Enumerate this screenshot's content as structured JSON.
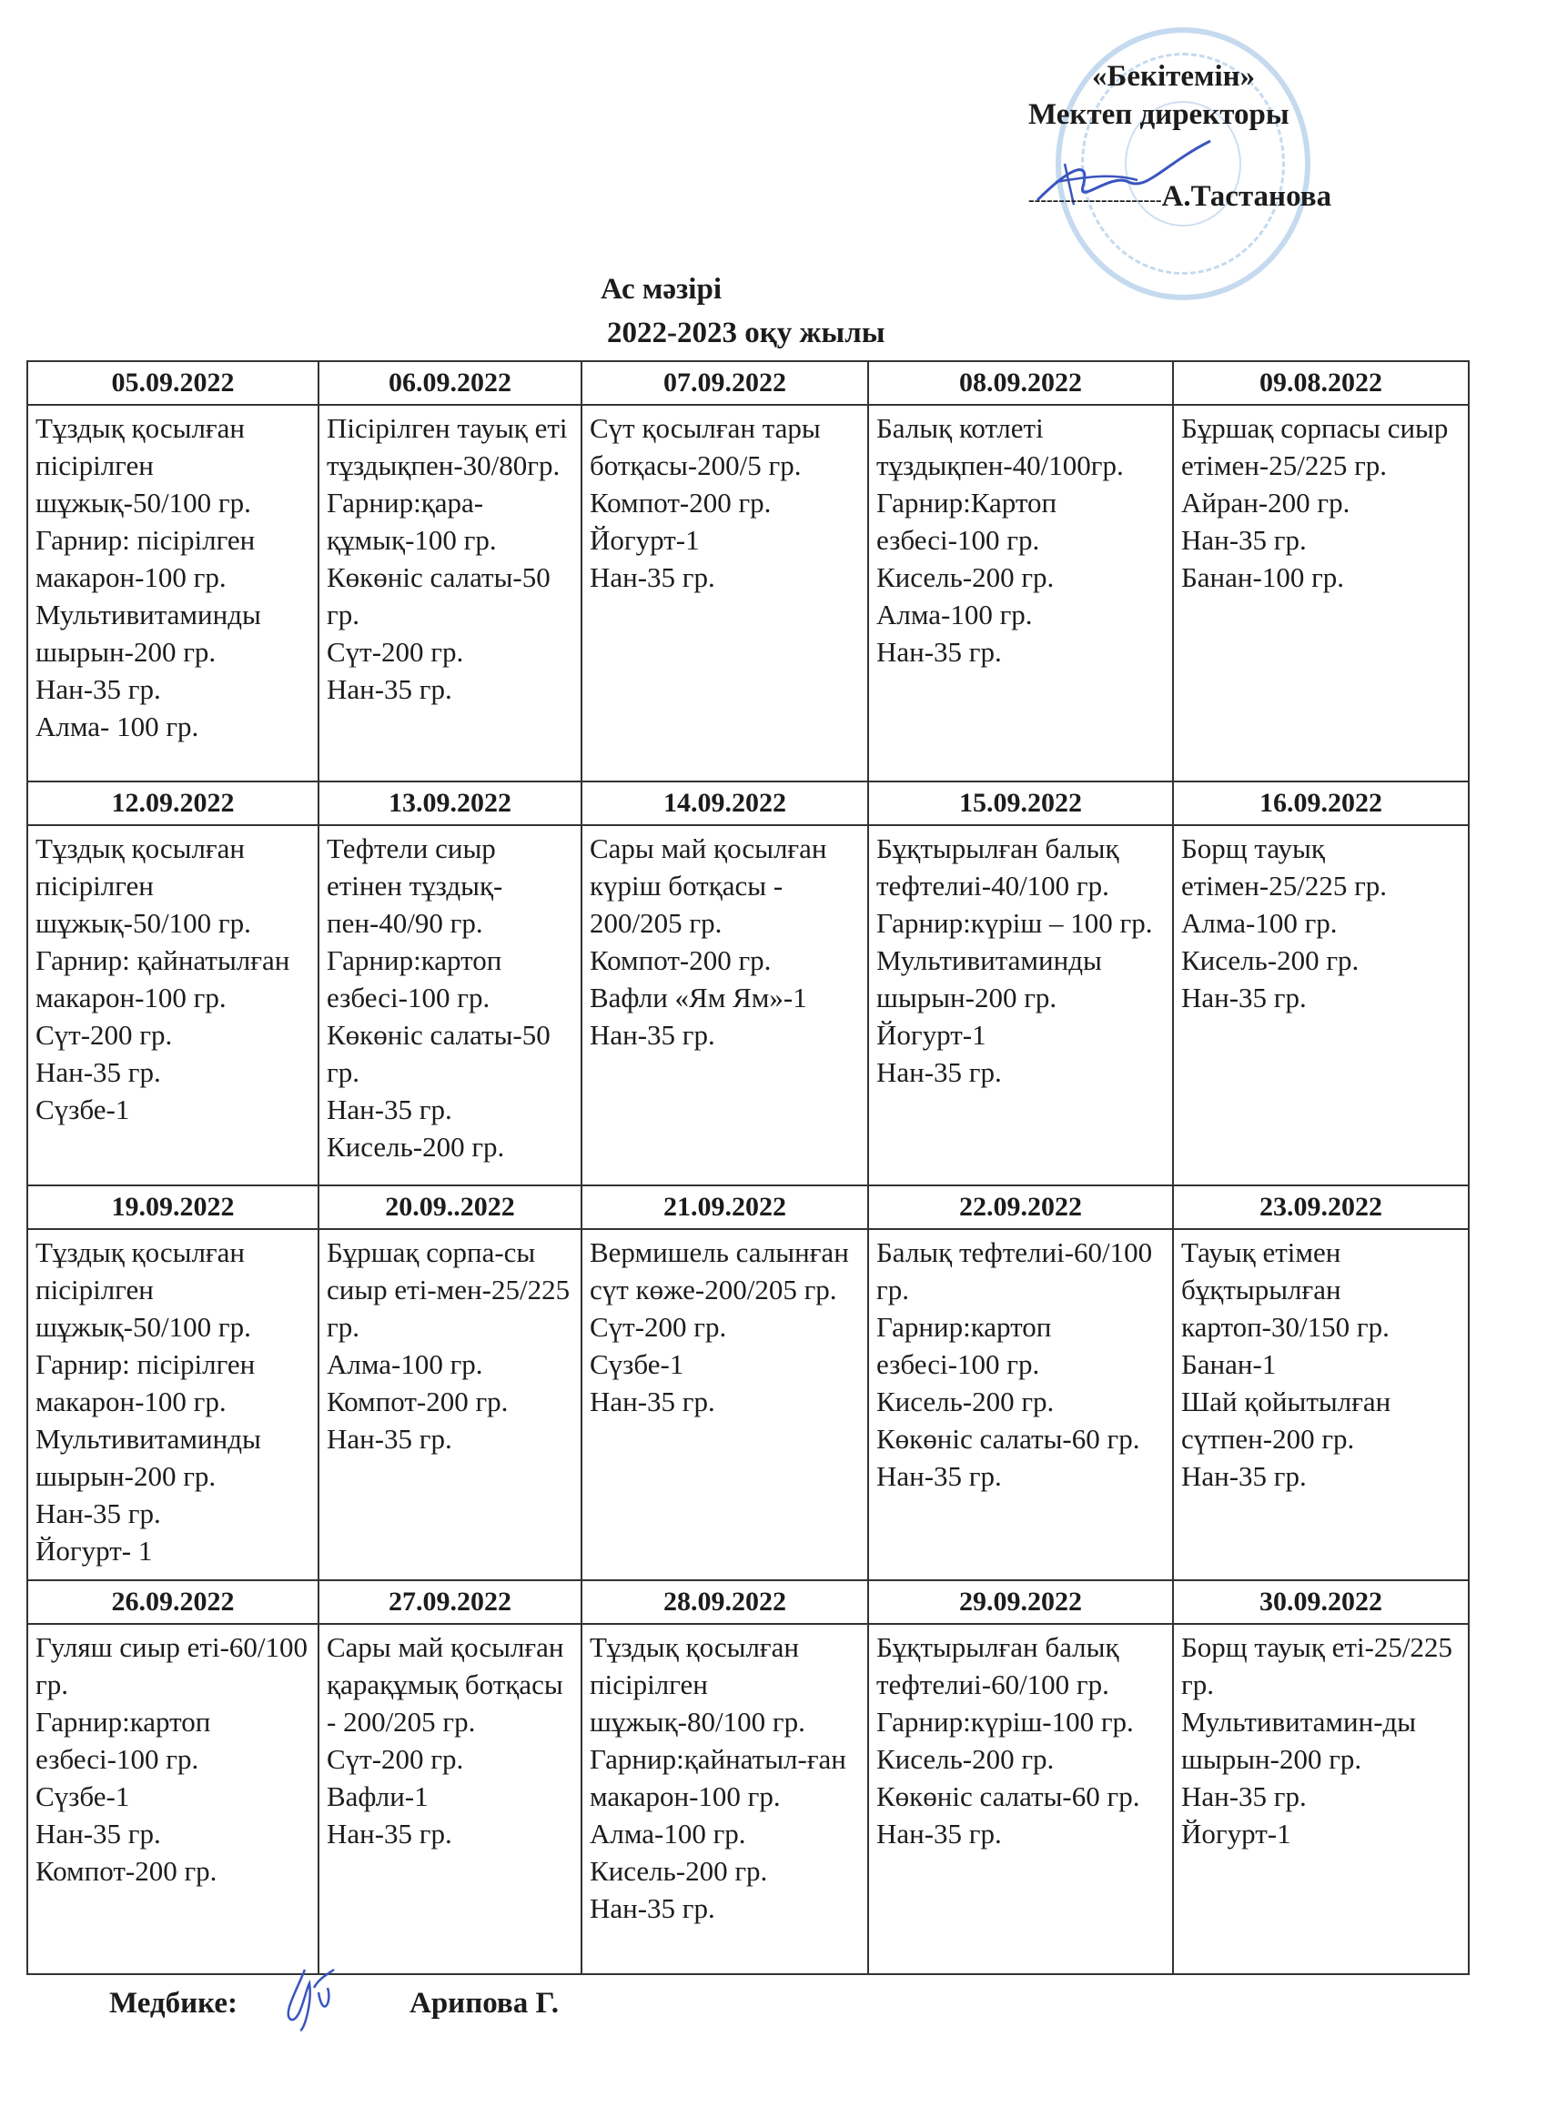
{
  "approval": {
    "approve_label": "«Бекітемін»",
    "position": "Мектеп директоры",
    "signature_line": "----------------------",
    "name": "А.Тастанова"
  },
  "title": {
    "main": "Ас мәзірі",
    "year": "2022-2023 оқу жылы"
  },
  "weeks": [
    {
      "dates": [
        "05.09.2022",
        "06.09.2022",
        "07.09.2022",
        "08.09.2022",
        "09.08.2022"
      ],
      "menus": [
        [
          "Тұздық қосылған пісірілген шұжық-50/100 гр.",
          "Гарнир: пісірілген макарон-100 гр.",
          "Мультивитаминды шырын-200 гр.",
          "Нан-35 гр.",
          "Алма- 100 гр."
        ],
        [
          "Пісірілген тауық еті тұздықпен-30/80гр.",
          "Гарнир:қара-құмық-100 гр.",
          "Көкөніс салаты-50 гр.",
          "Сүт-200 гр.",
          "Нан-35 гр."
        ],
        [
          "Сүт қосылған тары ботқасы-200/5 гр.",
          "Компот-200 гр.",
          "Йогурт-1",
          "Нан-35 гр."
        ],
        [
          "Балық котлеті тұздықпен-40/100гр.",
          "Гарнир:Картоп езбесі-100 гр.",
          "Кисель-200 гр.",
          "Алма-100 гр.",
          "Нан-35 гр."
        ],
        [
          "Бұршақ сорпасы сиыр етімен-25/225 гр.",
          "Айран-200 гр.",
          "Нан-35 гр.",
          "Банан-100 гр."
        ]
      ]
    },
    {
      "dates": [
        "12.09.2022",
        "13.09.2022",
        "14.09.2022",
        "15.09.2022",
        "16.09.2022"
      ],
      "menus": [
        [
          "Тұздық қосылған пісірілген шұжық-50/100 гр.",
          "Гарнир: қайнатылған макарон-100 гр.",
          "Сүт-200 гр.",
          "Нан-35 гр.",
          "Сүзбе-1"
        ],
        [
          "Тефтели сиыр етінен тұздық-пен-40/90 гр.",
          "Гарнир:картоп езбесі-100 гр.",
          "Көкөніс салаты-50 гр.",
          "Нан-35 гр.",
          "Кисель-200 гр."
        ],
        [
          "Сары май қосылған күріш ботқасы - 200/205 гр.",
          "Компот-200 гр.",
          "Вафли «Ям Ям»-1",
          "Нан-35 гр."
        ],
        [
          "Бұқтырылған балық тефтелиі-40/100 гр.",
          "Гарнир:күріш – 100 гр.",
          "Мультивитаминды шырын-200 гр.",
          "Йогурт-1",
          "Нан-35 гр."
        ],
        [
          "Борщ тауық етімен-25/225 гр.",
          "Алма-100 гр.",
          "Кисель-200 гр.",
          "Нан-35 гр."
        ]
      ]
    },
    {
      "dates": [
        "19.09.2022",
        "20.09..2022",
        "21.09.2022",
        "22.09.2022",
        "23.09.2022"
      ],
      "menus": [
        [
          "Тұздық қосылған пісірілген шұжық-50/100 гр.",
          "Гарнир: пісірілген макарон-100 гр.",
          "Мультивитаминды шырын-200 гр.",
          "Нан-35 гр.",
          "Йогурт- 1"
        ],
        [
          "Бұршақ сорпа-сы сиыр еті-мен-25/225 гр.",
          "Алма-100 гр.",
          "Компот-200 гр.",
          "Нан-35 гр."
        ],
        [
          "Вермишель салынған сүт көже-200/205 гр.",
          "Сүт-200 гр.",
          "Сүзбе-1",
          "Нан-35 гр."
        ],
        [
          "Балық тефтелиі-60/100 гр.",
          "Гарнир:картоп езбесі-100 гр.",
          "Кисель-200 гр.",
          "Көкөніс салаты-60 гр.",
          "Нан-35 гр."
        ],
        [
          "Тауық етімен бұқтырылған картоп-30/150 гр.",
          "Банан-1",
          "Шай қойытылған сүтпен-200 гр.",
          "Нан-35 гр."
        ]
      ]
    },
    {
      "dates": [
        "26.09.2022",
        "27.09.2022",
        "28.09.2022",
        "29.09.2022",
        "30.09.2022"
      ],
      "menus": [
        [
          "Гуляш сиыр еті-60/100 гр.",
          "Гарнир:картоп езбесі-100 гр.",
          "Сүзбе-1",
          "Нан-35 гр.",
          "Компот-200 гр."
        ],
        [
          "Сары май қосылған қарақұмық ботқасы - 200/205 гр.",
          "Сүт-200 гр.",
          "Вафли-1",
          "Нан-35 гр."
        ],
        [
          "Тұздық қосылған пісірілген шұжық-80/100 гр.",
          "Гарнир:қайнатыл-ған макарон-100 гр.",
          "Алма-100 гр.",
          "Кисель-200 гр.",
          "Нан-35 гр."
        ],
        [
          "Бұқтырылған балық тефтелиі-60/100 гр.",
          "Гарнир:күріш-100 гр.",
          "Кисель-200 гр.",
          "Көкөніс салаты-60 гр.",
          "Нан-35 гр."
        ],
        [
          "Борщ тауық еті-25/225 гр.",
          "Мультивитамин-ды шырын-200 гр.",
          "Нан-35 гр.",
          "Йогурт-1"
        ]
      ]
    }
  ],
  "footer": {
    "role": "Медбике:",
    "name": "Арипова Г."
  },
  "colors": {
    "ink": "#1c1c1c",
    "stamp": "#5a96d2",
    "signature": "#3a55c0"
  }
}
